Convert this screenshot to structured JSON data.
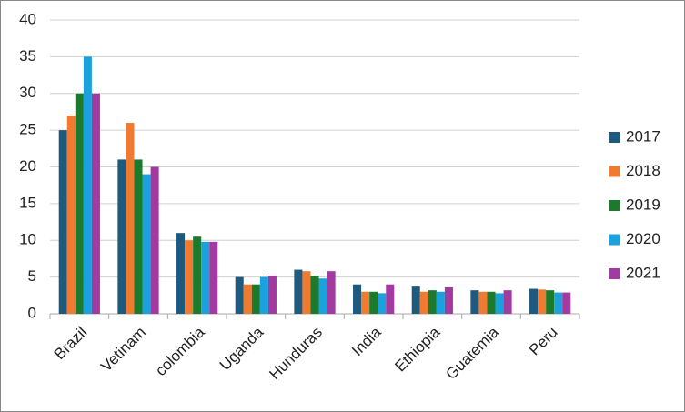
{
  "chart_data": {
    "type": "bar",
    "categories": [
      "Brazil",
      "Vetinam",
      "colombia",
      "Uganda",
      "Hunduras",
      "India",
      "Ethiopia",
      "Guatemia",
      "Peru"
    ],
    "series": [
      {
        "name": "2017",
        "color": "#1d5a7e",
        "values": [
          25,
          21,
          11,
          5,
          6,
          4,
          3.7,
          3.2,
          3.4
        ]
      },
      {
        "name": "2018",
        "color": "#f07b30",
        "values": [
          27,
          26,
          10,
          4,
          5.8,
          3,
          3,
          3,
          3.3
        ]
      },
      {
        "name": "2019",
        "color": "#1b7a2c",
        "values": [
          30,
          21,
          10.5,
          4,
          5.2,
          3,
          3.2,
          3,
          3.2
        ]
      },
      {
        "name": "2020",
        "color": "#1ba1dd",
        "values": [
          35,
          19,
          9.8,
          5,
          4.8,
          2.8,
          3,
          2.8,
          2.9
        ]
      },
      {
        "name": "2021",
        "color": "#a23ba0",
        "values": [
          30,
          20,
          9.8,
          5.2,
          5.8,
          4,
          3.6,
          3.2,
          2.9
        ]
      }
    ],
    "ylim": [
      0,
      40
    ],
    "yticks": [
      0,
      5,
      10,
      15,
      20,
      25,
      30,
      35,
      40
    ],
    "grid": true,
    "legend": "right"
  }
}
